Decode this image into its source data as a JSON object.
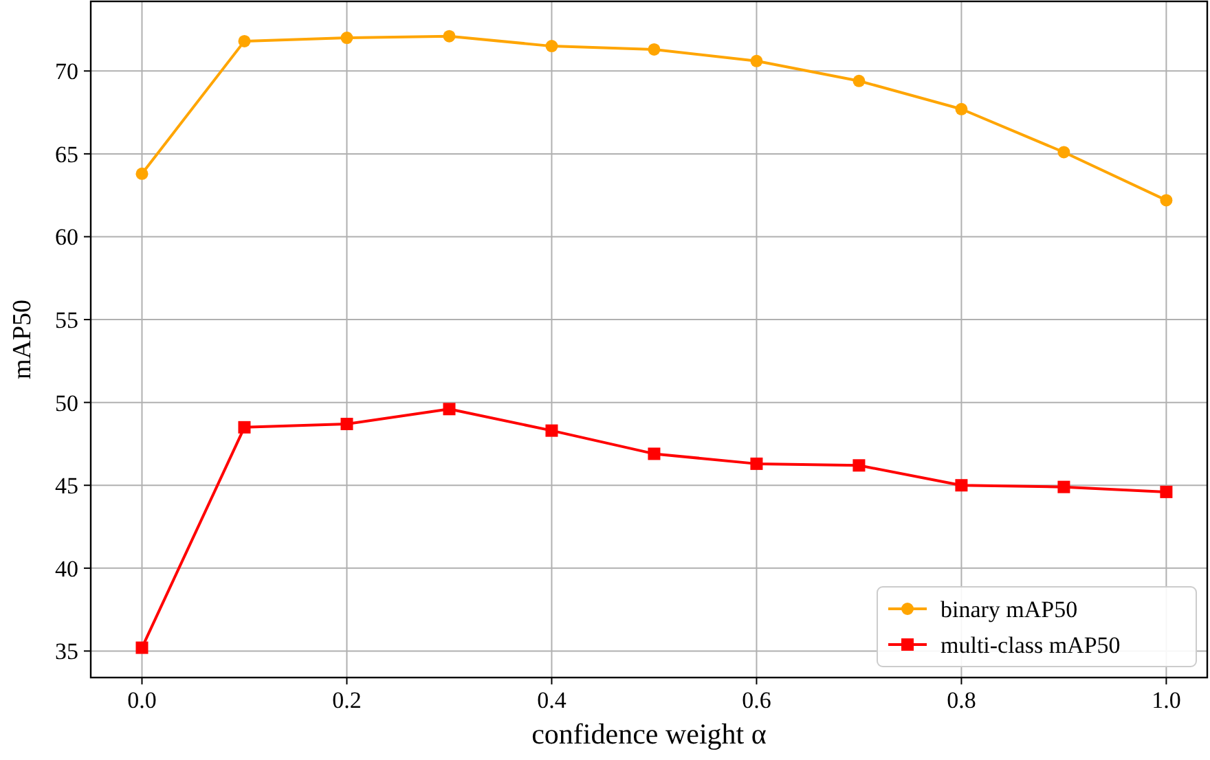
{
  "chart_data": {
    "type": "line",
    "xlabel": "confidence weight α",
    "ylabel": "mAP50",
    "x": [
      0.0,
      0.1,
      0.2,
      0.3,
      0.4,
      0.5,
      0.6,
      0.7,
      0.8,
      0.9,
      1.0
    ],
    "series": [
      {
        "name": "binary mAP50",
        "color": "#ffa500",
        "marker": "circle",
        "values": [
          63.8,
          71.8,
          72.0,
          72.1,
          71.5,
          71.3,
          70.6,
          69.4,
          67.7,
          65.1,
          62.2
        ]
      },
      {
        "name": "multi-class mAP50",
        "color": "#ff0000",
        "marker": "square",
        "values": [
          35.2,
          48.5,
          48.7,
          49.6,
          48.3,
          46.9,
          46.3,
          46.2,
          45.0,
          44.9,
          44.6
        ]
      }
    ],
    "xlim": [
      -0.05,
      1.04
    ],
    "ylim": [
      33.4,
      74.2
    ],
    "xticks": [
      {
        "value": 0,
        "label": "0.0"
      },
      0.2,
      0.4,
      0.6,
      0.8,
      {
        "value": 1,
        "label": "1.0"
      }
    ],
    "yticks": [
      35,
      40,
      45,
      50,
      55,
      60,
      65,
      70
    ],
    "grid": true,
    "legend": "bottom right",
    "line_style": "solid"
  }
}
